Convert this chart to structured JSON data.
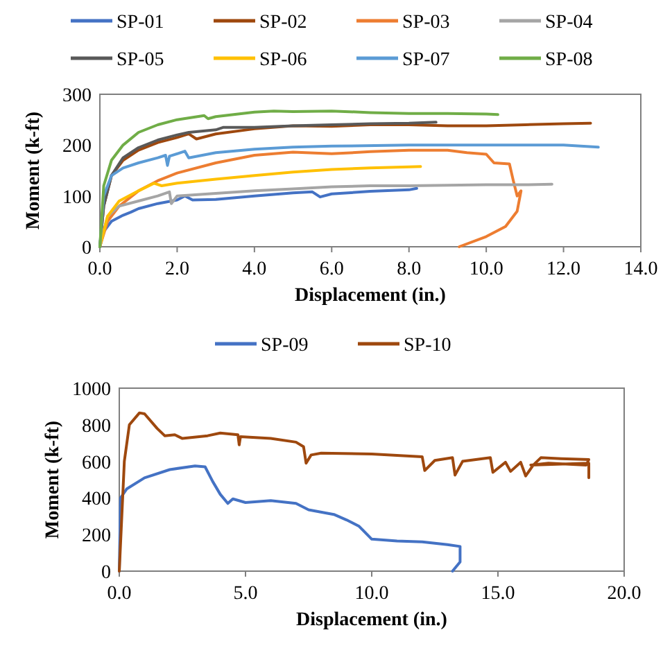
{
  "chart_data": [
    {
      "type": "line",
      "xlabel": "Displacement (in.)",
      "ylabel": "Moment (k-ft)",
      "legend": "top",
      "grid": false,
      "marker": "none",
      "line_style": "solid",
      "xlim": [
        0,
        14
      ],
      "xticks": [
        {
          "value": 0,
          "label": "0.0"
        },
        {
          "value": 2,
          "label": "2.0"
        },
        {
          "value": 4,
          "label": "4.0"
        },
        {
          "value": 6,
          "label": "6.0"
        },
        {
          "value": 8,
          "label": "8.0"
        },
        {
          "value": 10,
          "label": "10.0"
        },
        {
          "value": 12,
          "label": "12.0"
        },
        {
          "value": 14,
          "label": "14.0"
        }
      ],
      "ylim": [
        0,
        300
      ],
      "yticks": [
        0,
        100,
        200,
        300
      ],
      "series": [
        {
          "name": "SP-01",
          "color": "#4472c4",
          "x": [
            0,
            0.1,
            0.3,
            0.6,
            0.8,
            1.0,
            1.5,
            2.0,
            2.2,
            2.4,
            3.0,
            4.0,
            5.0,
            5.5,
            5.7,
            6.0,
            7.0,
            8.0,
            8.2
          ],
          "values": [
            0,
            30,
            50,
            62,
            68,
            75,
            85,
            92,
            100,
            92,
            93,
            100,
            106,
            108,
            98,
            104,
            109,
            112,
            115
          ]
        },
        {
          "name": "SP-02",
          "color": "#9e480e",
          "x": [
            0,
            0.1,
            0.3,
            0.6,
            1.0,
            1.5,
            2.0,
            2.3,
            2.5,
            3.0,
            4.0,
            5.0,
            6.0,
            7.0,
            8.0,
            9.0,
            10.0,
            11.0,
            12.0,
            12.7
          ],
          "values": [
            0,
            80,
            140,
            170,
            190,
            205,
            215,
            222,
            212,
            222,
            232,
            238,
            237,
            240,
            240,
            238,
            238,
            240,
            242,
            243
          ]
        },
        {
          "name": "SP-03",
          "color": "#ed7d31",
          "x": [
            0,
            0.2,
            0.5,
            1.0,
            1.5,
            2.0,
            3.0,
            4.0,
            5.0,
            6.0,
            7.0,
            8.0,
            9.0,
            9.5,
            10.0,
            10.2,
            10.6,
            10.7,
            10.8,
            10.9,
            10.8,
            10.5,
            10.0,
            9.3
          ],
          "values": [
            0,
            50,
            80,
            110,
            130,
            145,
            165,
            180,
            186,
            183,
            187,
            190,
            190,
            185,
            182,
            165,
            163,
            130,
            100,
            110,
            70,
            40,
            20,
            0
          ]
        },
        {
          "name": "SP-04",
          "color": "#a5a5a5",
          "x": [
            0,
            0.2,
            0.5,
            1.0,
            1.5,
            1.8,
            1.85,
            2.0,
            3.0,
            4.0,
            5.0,
            6.0,
            7.0,
            8.0,
            9.0,
            10.0,
            11.0,
            11.7
          ],
          "values": [
            0,
            60,
            80,
            90,
            100,
            108,
            85,
            100,
            105,
            110,
            114,
            118,
            120,
            120,
            121,
            122,
            122,
            123
          ]
        },
        {
          "name": "SP-05",
          "color": "#595959",
          "x": [
            0,
            0.1,
            0.3,
            0.6,
            1.0,
            1.5,
            2.0,
            2.3,
            3.0,
            3.2,
            4.0,
            5.0,
            6.0,
            7.0,
            8.0,
            8.7
          ],
          "values": [
            0,
            80,
            140,
            175,
            195,
            210,
            220,
            225,
            230,
            235,
            235,
            238,
            240,
            242,
            243,
            245
          ]
        },
        {
          "name": "SP-06",
          "color": "#ffc000",
          "x": [
            0,
            0.2,
            0.5,
            1.0,
            1.4,
            1.6,
            2.0,
            3.0,
            4.0,
            5.0,
            6.0,
            7.0,
            8.0,
            8.3
          ],
          "values": [
            0,
            60,
            90,
            110,
            125,
            120,
            125,
            133,
            140,
            147,
            152,
            155,
            157,
            158
          ]
        },
        {
          "name": "SP-07",
          "color": "#5b9bd5",
          "x": [
            0,
            0.1,
            0.3,
            0.6,
            1.0,
            1.5,
            1.7,
            1.75,
            1.8,
            2.2,
            2.3,
            3.0,
            4.0,
            5.0,
            6.0,
            8.0,
            10.0,
            12.0,
            12.9
          ],
          "values": [
            0,
            100,
            140,
            155,
            165,
            175,
            180,
            160,
            178,
            188,
            175,
            185,
            192,
            196,
            198,
            200,
            200,
            200,
            196
          ]
        },
        {
          "name": "SP-08",
          "color": "#70ad47",
          "x": [
            0,
            0.1,
            0.3,
            0.6,
            1.0,
            1.5,
            2.0,
            2.7,
            2.8,
            3.0,
            4.0,
            4.5,
            5.0,
            6.0,
            7.0,
            8.0,
            9.0,
            10.0,
            10.3
          ],
          "values": [
            0,
            120,
            170,
            200,
            225,
            240,
            250,
            258,
            252,
            256,
            265,
            267,
            266,
            267,
            264,
            262,
            262,
            261,
            260
          ]
        }
      ]
    },
    {
      "type": "line",
      "xlabel": "Displacement (in.)",
      "ylabel": "Moment (k-ft)",
      "legend": "top",
      "grid": false,
      "marker": "none",
      "line_style": "solid",
      "xlim": [
        0,
        20
      ],
      "xticks": [
        {
          "value": 0,
          "label": "0.0"
        },
        {
          "value": 5,
          "label": "5.0"
        },
        {
          "value": 10,
          "label": "10.0"
        },
        {
          "value": 15,
          "label": "15.0"
        },
        {
          "value": 20,
          "label": "20.0"
        }
      ],
      "ylim": [
        0,
        1000
      ],
      "yticks": [
        0,
        200,
        400,
        600,
        800,
        1000
      ],
      "series": [
        {
          "name": "SP-09",
          "color": "#4472c4",
          "x": [
            0,
            0.05,
            0.3,
            1.0,
            2.0,
            3.0,
            3.4,
            3.7,
            4.0,
            4.3,
            4.5,
            5.0,
            6.0,
            7.0,
            7.5,
            8.5,
            9.0,
            9.5,
            10.0,
            11.0,
            12.0,
            13.0,
            13.5,
            13.5,
            13.2
          ],
          "values": [
            0,
            400,
            450,
            510,
            555,
            575,
            570,
            490,
            420,
            370,
            395,
            375,
            385,
            370,
            335,
            310,
            280,
            245,
            175,
            165,
            160,
            145,
            135,
            50,
            0
          ]
        },
        {
          "name": "SP-10",
          "color": "#9e480e",
          "x": [
            0,
            0.2,
            0.4,
            0.8,
            1.0,
            1.5,
            1.8,
            2.2,
            2.5,
            3.5,
            4.0,
            4.7,
            4.75,
            4.8,
            6.0,
            7.0,
            7.3,
            7.4,
            7.6,
            8.0,
            10.0,
            12.0,
            12.1,
            12.5,
            13.2,
            13.3,
            13.6,
            14.7,
            14.8,
            15.3,
            15.5,
            15.9,
            16.1,
            16.4,
            16.7,
            17.5,
            18.6,
            18.5,
            17.0,
            16.3,
            18.6,
            18.6
          ],
          "values": [
            0,
            600,
            800,
            865,
            860,
            780,
            740,
            745,
            725,
            740,
            755,
            745,
            690,
            735,
            725,
            705,
            680,
            590,
            635,
            645,
            640,
            625,
            550,
            605,
            620,
            525,
            600,
            620,
            540,
            595,
            545,
            595,
            520,
            580,
            620,
            615,
            610,
            580,
            590,
            580,
            590,
            510
          ]
        }
      ]
    }
  ]
}
